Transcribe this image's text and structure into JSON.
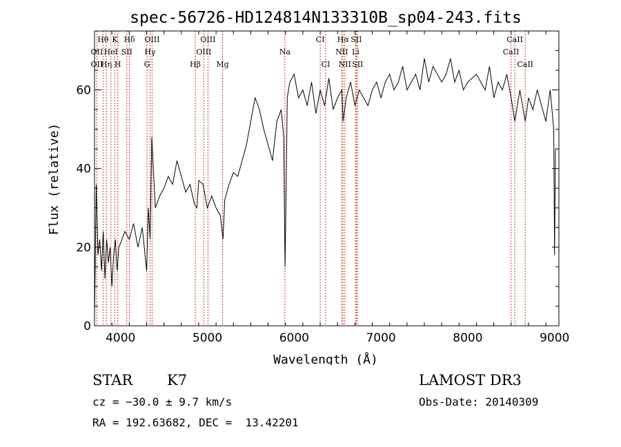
{
  "chart_data": {
    "type": "line",
    "title": "spec-56726-HD124814N133310B_sp04-243.fits",
    "xlabel": "Wavelength (Å)",
    "ylabel": "Flux (relative)",
    "xlim": [
      3700,
      9050
    ],
    "ylim": [
      0,
      75
    ],
    "xticks": [
      4000,
      5000,
      6000,
      7000,
      8000,
      9000
    ],
    "yticks": [
      0,
      20,
      40,
      60
    ],
    "series": [
      {
        "x": [
          3700,
          3720,
          3740,
          3760,
          3780,
          3800,
          3820,
          3840,
          3860,
          3880,
          3900,
          3920,
          3940,
          3960,
          3980,
          4000,
          4050,
          4100,
          4150,
          4200,
          4250,
          4300,
          4320,
          4340,
          4360,
          4400,
          4450,
          4500,
          4550,
          4600,
          4650,
          4700,
          4750,
          4800,
          4850,
          4880,
          4900,
          4950,
          5000,
          5050,
          5100,
          5150,
          5180,
          5200,
          5250,
          5300,
          5350,
          5400,
          5450,
          5500,
          5550,
          5600,
          5650,
          5700,
          5750,
          5800,
          5850,
          5880,
          5895,
          5905,
          5920,
          5950,
          6000,
          6050,
          6100,
          6150,
          6200,
          6250,
          6300,
          6350,
          6400,
          6450,
          6500,
          6550,
          6563,
          6600,
          6650,
          6700,
          6750,
          6800,
          6850,
          6900,
          6950,
          7000,
          7050,
          7100,
          7150,
          7200,
          7250,
          7300,
          7350,
          7400,
          7450,
          7500,
          7550,
          7600,
          7650,
          7700,
          7750,
          7800,
          7850,
          7900,
          7950,
          8000,
          8050,
          8100,
          8150,
          8200,
          8250,
          8300,
          8350,
          8400,
          8450,
          8500,
          8542,
          8600,
          8662,
          8700,
          8750,
          8800,
          8850,
          8900,
          8950,
          8990,
          9000,
          9010
        ],
        "values": [
          2,
          36,
          18,
          22,
          14,
          24,
          12,
          22,
          16,
          20,
          10,
          18,
          22,
          14,
          20,
          21,
          24,
          22,
          26,
          20,
          25,
          14,
          30,
          22,
          48,
          30,
          33,
          35,
          38,
          36,
          42,
          38,
          34,
          36,
          31,
          30,
          37,
          36,
          30,
          33,
          30,
          28,
          22,
          32,
          36,
          39,
          38,
          42,
          46,
          52,
          58,
          55,
          50,
          46,
          42,
          52,
          55,
          48,
          15,
          30,
          58,
          62,
          64,
          58,
          60,
          56,
          62,
          54,
          60,
          56,
          63,
          55,
          58,
          60,
          52,
          58,
          62,
          56,
          60,
          58,
          56,
          60,
          62,
          58,
          62,
          64,
          60,
          62,
          66,
          60,
          62,
          64,
          60,
          68,
          62,
          66,
          64,
          62,
          64,
          68,
          62,
          65,
          60,
          62,
          63,
          64,
          62,
          60,
          66,
          58,
          62,
          60,
          64,
          58,
          52,
          60,
          52,
          58,
          55,
          60,
          56,
          52,
          60,
          50,
          18,
          45
        ]
      }
    ],
    "annotations": [
      {
        "label": "Hθ",
        "x": 3798,
        "row": 0
      },
      {
        "label": "K",
        "x": 3934,
        "row": 0
      },
      {
        "label": "Hδ",
        "x": 4102,
        "row": 0
      },
      {
        "label": "OIII",
        "x": 4363,
        "row": 0
      },
      {
        "label": "OIII",
        "x": 5007,
        "row": 0
      },
      {
        "label": "CI",
        "x": 6300,
        "row": 0
      },
      {
        "label": "Hα",
        "x": 6563,
        "row": 0
      },
      {
        "label": "SII",
        "x": 6716,
        "row": 0
      },
      {
        "label": "CaII",
        "x": 8542,
        "row": 0
      },
      {
        "label": "OII",
        "x": 3727,
        "row": 1
      },
      {
        "label": "HeI",
        "x": 3889,
        "row": 1
      },
      {
        "label": "SII",
        "x": 4072,
        "row": 1
      },
      {
        "label": "Hγ",
        "x": 4340,
        "row": 1
      },
      {
        "label": "OIII",
        "x": 4959,
        "row": 1
      },
      {
        "label": "Na",
        "x": 5893,
        "row": 1
      },
      {
        "label": "NII",
        "x": 6548,
        "row": 1
      },
      {
        "label": "Li",
        "x": 6708,
        "row": 1
      },
      {
        "label": "CaII",
        "x": 8498,
        "row": 1
      },
      {
        "label": "OII",
        "x": 3727,
        "row": 2
      },
      {
        "label": "Hη",
        "x": 3835,
        "row": 2
      },
      {
        "label": "H",
        "x": 3968,
        "row": 2
      },
      {
        "label": "G",
        "x": 4304,
        "row": 2
      },
      {
        "label": "Hβ",
        "x": 4861,
        "row": 2
      },
      {
        "label": "Mg",
        "x": 5175,
        "row": 2
      },
      {
        "label": "CI",
        "x": 6363,
        "row": 2
      },
      {
        "label": "NII",
        "x": 6583,
        "row": 2
      },
      {
        "label": "SII",
        "x": 6731,
        "row": 2
      },
      {
        "label": "CaII",
        "x": 8662,
        "row": 2
      }
    ],
    "line_markers": [
      3727,
      3798,
      3835,
      3889,
      3934,
      3968,
      4072,
      4102,
      4304,
      4340,
      4363,
      4861,
      4959,
      5007,
      5175,
      5893,
      6300,
      6363,
      6548,
      6563,
      6583,
      6708,
      6716,
      6731,
      8498,
      8542,
      8662
    ],
    "colors": {
      "spectrum": "#000000",
      "markers": "#c0392b",
      "axes": "#000000"
    }
  },
  "info": {
    "object_class": "STAR",
    "subclass": "K7",
    "survey": "LAMOST DR3",
    "cz": "cz = −30.0 ± 9.7 km/s",
    "obs_date": "Obs-Date: 20140309",
    "coords": "RA = 192.63682, DEC =  13.42201"
  }
}
